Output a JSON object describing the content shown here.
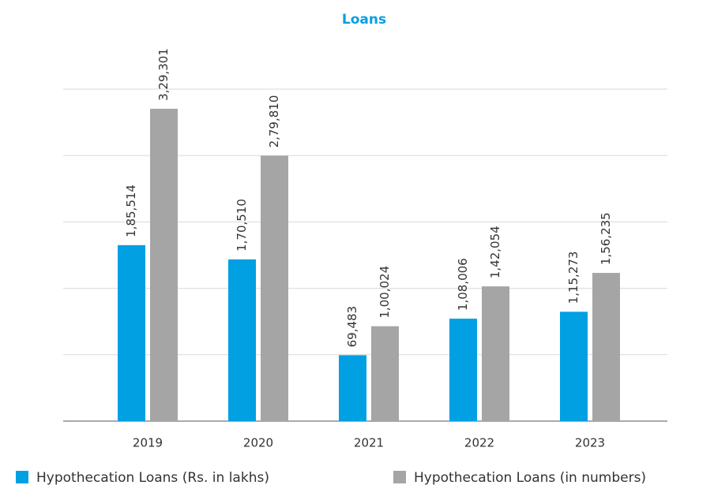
{
  "chart_data": {
    "type": "bar",
    "title": "Loans",
    "categories": [
      "2019",
      "2020",
      "2021",
      "2022",
      "2023"
    ],
    "series": [
      {
        "name": "Hypothecation Loans (Rs. in lakhs)",
        "color": "#00a0e3",
        "values": [
          185514,
          170510,
          69483,
          108006,
          115273
        ],
        "value_labels": [
          "1,85,514",
          "1,70,510",
          "69,483",
          "1,08,006",
          "1,15,273"
        ]
      },
      {
        "name": "Hypothecation Loans (in numbers)",
        "color": "#a5a5a5",
        "values": [
          329301,
          279810,
          100024,
          142054,
          156235
        ],
        "value_labels": [
          "3,29,301",
          "2,79,810",
          "1,00,024",
          "1,42,054",
          "1,56,235"
        ]
      }
    ],
    "ylim": [
      0,
      350000
    ],
    "yticks": [
      0,
      70000,
      140000,
      210000,
      280000,
      350000
    ],
    "grid": true
  }
}
